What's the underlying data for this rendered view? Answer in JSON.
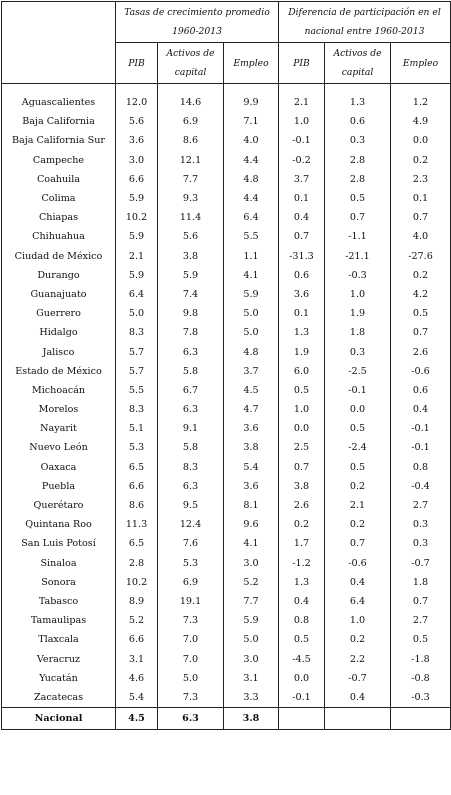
{
  "header": {
    "group_growth": "Tasas de crecimiento promedio 1960-2013",
    "group_diff": "Diferencia de participación en el nacional entre 1960-2013",
    "col_pib": "PIB",
    "col_activos": "Activos de capital",
    "col_empleo": "Empleo"
  },
  "rows": [
    {
      "state": "Aguascalientes",
      "g_pib": "12.0",
      "g_act": "14.6",
      "g_emp": "9.9",
      "d_pib": "2.1",
      "d_act": "1.3",
      "d_emp": "1.2"
    },
    {
      "state": "Baja California",
      "g_pib": "5.6",
      "g_act": "6.9",
      "g_emp": "7.1",
      "d_pib": "1.0",
      "d_act": "0.6",
      "d_emp": "4.9"
    },
    {
      "state": "Baja California Sur",
      "g_pib": "3.6",
      "g_act": "8.6",
      "g_emp": "4.0",
      "d_pib": "-0.1",
      "d_act": "0.3",
      "d_emp": "0.0"
    },
    {
      "state": "Campeche",
      "g_pib": "3.0",
      "g_act": "12.1",
      "g_emp": "4.4",
      "d_pib": "-0.2",
      "d_act": "2.8",
      "d_emp": "0.2"
    },
    {
      "state": "Coahuila",
      "g_pib": "6.6",
      "g_act": "7.7",
      "g_emp": "4.8",
      "d_pib": "3.7",
      "d_act": "2.8",
      "d_emp": "2.3"
    },
    {
      "state": "Colima",
      "g_pib": "5.9",
      "g_act": "9.3",
      "g_emp": "4.4",
      "d_pib": "0.1",
      "d_act": "0.5",
      "d_emp": "0.1"
    },
    {
      "state": "Chiapas",
      "g_pib": "10.2",
      "g_act": "11.4",
      "g_emp": "6.4",
      "d_pib": "0.4",
      "d_act": "0.7",
      "d_emp": "0.7"
    },
    {
      "state": "Chihuahua",
      "g_pib": "5.9",
      "g_act": "5.6",
      "g_emp": "5.5",
      "d_pib": "0.7",
      "d_act": "-1.1",
      "d_emp": "4.0"
    },
    {
      "state": "Ciudad de México",
      "g_pib": "2.1",
      "g_act": "3.8",
      "g_emp": "1.1",
      "d_pib": "-31.3",
      "d_act": "-21.1",
      "d_emp": "-27.6"
    },
    {
      "state": "Durango",
      "g_pib": "5.9",
      "g_act": "5.9",
      "g_emp": "4.1",
      "d_pib": "0.6",
      "d_act": "-0.3",
      "d_emp": "0.2"
    },
    {
      "state": "Guanajuato",
      "g_pib": "6.4",
      "g_act": "7.4",
      "g_emp": "5.9",
      "d_pib": "3.6",
      "d_act": "1.0",
      "d_emp": "4.2"
    },
    {
      "state": "Guerrero",
      "g_pib": "5.0",
      "g_act": "9.8",
      "g_emp": "5.0",
      "d_pib": "0.1",
      "d_act": "1.9",
      "d_emp": "0.5"
    },
    {
      "state": "Hidalgo",
      "g_pib": "8.3",
      "g_act": "7.8",
      "g_emp": "5.0",
      "d_pib": "1.3",
      "d_act": "1.8",
      "d_emp": "0.7"
    },
    {
      "state": "Jalisco",
      "g_pib": "5.7",
      "g_act": "6.3",
      "g_emp": "4.8",
      "d_pib": "1.9",
      "d_act": "0.3",
      "d_emp": "2.6"
    },
    {
      "state": "Estado de México",
      "g_pib": "5.7",
      "g_act": "5.8",
      "g_emp": "3.7",
      "d_pib": "6.0",
      "d_act": "-2.5",
      "d_emp": "-0.6"
    },
    {
      "state": "Michoacán",
      "g_pib": "5.5",
      "g_act": "6.7",
      "g_emp": "4.5",
      "d_pib": "0.5",
      "d_act": "-0.1",
      "d_emp": "0.6"
    },
    {
      "state": "Morelos",
      "g_pib": "8.3",
      "g_act": "6.3",
      "g_emp": "4.7",
      "d_pib": "1.0",
      "d_act": "0.0",
      "d_emp": "0.4"
    },
    {
      "state": "Nayarit",
      "g_pib": "5.1",
      "g_act": "9.1",
      "g_emp": "3.6",
      "d_pib": "0.0",
      "d_act": "0.5",
      "d_emp": "-0.1"
    },
    {
      "state": "Nuevo León",
      "g_pib": "5.3",
      "g_act": "5.8",
      "g_emp": "3.8",
      "d_pib": "2.5",
      "d_act": "-2.4",
      "d_emp": "-0.1"
    },
    {
      "state": "Oaxaca",
      "g_pib": "6.5",
      "g_act": "8.3",
      "g_emp": "5.4",
      "d_pib": "0.7",
      "d_act": "0.5",
      "d_emp": "0.8"
    },
    {
      "state": "Puebla",
      "g_pib": "6.6",
      "g_act": "6.3",
      "g_emp": "3.6",
      "d_pib": "3.8",
      "d_act": "0.2",
      "d_emp": "-0.4"
    },
    {
      "state": "Querétaro",
      "g_pib": "8.6",
      "g_act": "9.5",
      "g_emp": "8.1",
      "d_pib": "2.6",
      "d_act": "2.1",
      "d_emp": "2.7"
    },
    {
      "state": "Quintana Roo",
      "g_pib": "11.3",
      "g_act": "12.4",
      "g_emp": "9.6",
      "d_pib": "0.2",
      "d_act": "0.2",
      "d_emp": "0.3"
    },
    {
      "state": "San Luis Potosí",
      "g_pib": "6.5",
      "g_act": "7.6",
      "g_emp": "4.1",
      "d_pib": "1.7",
      "d_act": "0.7",
      "d_emp": "0.3"
    },
    {
      "state": "Sinaloa",
      "g_pib": "2.8",
      "g_act": "5.3",
      "g_emp": "3.0",
      "d_pib": "-1.2",
      "d_act": "-0.6",
      "d_emp": "-0.7"
    },
    {
      "state": "Sonora",
      "g_pib": "10.2",
      "g_act": "6.9",
      "g_emp": "5.2",
      "d_pib": "1.3",
      "d_act": "0.4",
      "d_emp": "1.8"
    },
    {
      "state": "Tabasco",
      "g_pib": "8.9",
      "g_act": "19.1",
      "g_emp": "7.7",
      "d_pib": "0.4",
      "d_act": "6.4",
      "d_emp": "0.7"
    },
    {
      "state": "Tamaulipas",
      "g_pib": "5.2",
      "g_act": "7.3",
      "g_emp": "5.9",
      "d_pib": "0.8",
      "d_act": "1.0",
      "d_emp": "2.7"
    },
    {
      "state": "Tlaxcala",
      "g_pib": "6.6",
      "g_act": "7.0",
      "g_emp": "5.0",
      "d_pib": "0.5",
      "d_act": "0.2",
      "d_emp": "0.5"
    },
    {
      "state": "Veracruz",
      "g_pib": "3.1",
      "g_act": "7.0",
      "g_emp": "3.0",
      "d_pib": "-4.5",
      "d_act": "2.2",
      "d_emp": "-1.8"
    },
    {
      "state": "Yucatán",
      "g_pib": "4.6",
      "g_act": "5.0",
      "g_emp": "3.1",
      "d_pib": "0.0",
      "d_act": "-0.7",
      "d_emp": "-0.8"
    },
    {
      "state": "Zacatecas",
      "g_pib": "5.4",
      "g_act": "7.3",
      "g_emp": "3.3",
      "d_pib": "-0.1",
      "d_act": "0.4",
      "d_emp": "-0.3"
    }
  ],
  "total": {
    "state": "Nacional",
    "g_pib": "4.5",
    "g_act": "6.3",
    "g_emp": "3.8",
    "d_pib": "",
    "d_act": "",
    "d_emp": ""
  }
}
